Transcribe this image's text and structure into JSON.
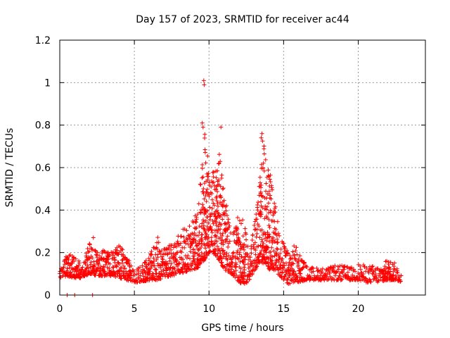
{
  "chart_data": {
    "type": "scatter",
    "title": "Day 157 of 2023, SRMTID for receiver ac44",
    "xlabel": "GPS time / hours",
    "ylabel": "SRMTID / TECUs",
    "xlim": [
      0,
      24.5
    ],
    "ylim": [
      0,
      1.2
    ],
    "xticks": [
      0,
      5,
      10,
      15,
      20
    ],
    "xtick_labels": [
      "0",
      "5",
      "10",
      "15",
      "20"
    ],
    "yticks": [
      0,
      0.2,
      0.4,
      0.6,
      0.8,
      1,
      1.2
    ],
    "ytick_labels": [
      "0",
      "0.2",
      "0.4",
      "0.6",
      "0.8",
      "1",
      "1.2"
    ],
    "grid": true,
    "marker": "+",
    "series_color": "#ff0000",
    "series": [
      {
        "name": "SRMTID",
        "envelope_x": [
          0,
          0.5,
          1,
          1.5,
          2,
          2.5,
          3,
          3.5,
          4,
          4.5,
          5,
          5.5,
          6,
          6.5,
          7,
          7.5,
          8,
          8.5,
          9,
          9.3,
          9.6,
          9.8,
          10,
          10.2,
          10.5,
          10.8,
          11,
          11.5,
          12,
          12.3,
          12.6,
          13,
          13.3,
          13.6,
          13.8,
          14,
          14.3,
          14.6,
          15,
          15.3,
          15.6,
          16,
          16.5,
          17,
          17.5,
          18,
          18.5,
          19,
          19.5,
          20,
          20.5,
          21,
          21.5,
          22,
          22.5,
          22.9
        ],
        "envelope_low": [
          0.08,
          0.09,
          0.08,
          0.08,
          0.1,
          0.09,
          0.09,
          0.09,
          0.08,
          0.07,
          0.06,
          0.06,
          0.07,
          0.07,
          0.08,
          0.09,
          0.1,
          0.11,
          0.12,
          0.13,
          0.15,
          0.18,
          0.2,
          0.2,
          0.18,
          0.15,
          0.12,
          0.1,
          0.06,
          0.05,
          0.06,
          0.1,
          0.15,
          0.15,
          0.15,
          0.12,
          0.12,
          0.1,
          0.07,
          0.05,
          0.06,
          0.06,
          0.07,
          0.07,
          0.07,
          0.07,
          0.07,
          0.07,
          0.07,
          0.07,
          0.06,
          0.06,
          0.06,
          0.07,
          0.07,
          0.06
        ],
        "envelope_high": [
          0.12,
          0.2,
          0.18,
          0.16,
          0.25,
          0.2,
          0.22,
          0.2,
          0.25,
          0.18,
          0.12,
          0.14,
          0.18,
          0.28,
          0.22,
          0.25,
          0.3,
          0.32,
          0.38,
          0.4,
          0.72,
          0.8,
          0.6,
          0.58,
          0.62,
          0.7,
          0.5,
          0.28,
          0.38,
          0.35,
          0.25,
          0.3,
          0.5,
          0.74,
          0.65,
          0.6,
          0.5,
          0.35,
          0.25,
          0.2,
          0.24,
          0.22,
          0.14,
          0.13,
          0.13,
          0.13,
          0.14,
          0.14,
          0.13,
          0.15,
          0.14,
          0.14,
          0.14,
          0.17,
          0.15,
          0.12
        ],
        "outliers": [
          {
            "x": 9.65,
            "y": 1.01
          },
          {
            "x": 9.68,
            "y": 0.99
          },
          {
            "x": 9.55,
            "y": 0.81
          },
          {
            "x": 9.6,
            "y": 0.79
          },
          {
            "x": 10.8,
            "y": 0.79
          },
          {
            "x": 13.55,
            "y": 0.76
          },
          {
            "x": 13.5,
            "y": 0.74
          },
          {
            "x": 0.5,
            "y": 0.0
          },
          {
            "x": 2.2,
            "y": 0.0
          },
          {
            "x": 2.25,
            "y": 0.27
          },
          {
            "x": 1.0,
            "y": 0.0
          }
        ]
      }
    ]
  }
}
